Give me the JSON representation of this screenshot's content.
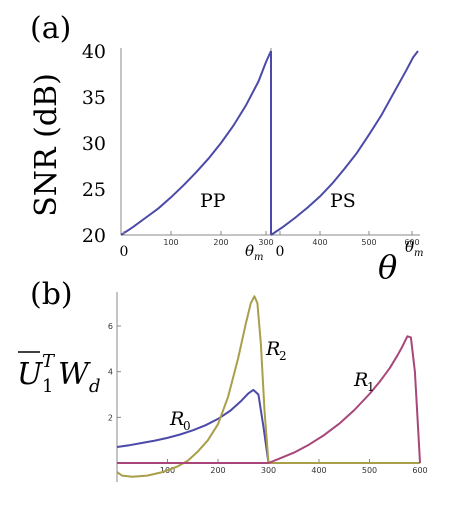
{
  "chart_data": [
    {
      "panel_label": "(a)",
      "type": "line",
      "ylabel": "SNR (dB)",
      "xlabel": "θ",
      "ylim": [
        20,
        40
      ],
      "y_ticks": [
        "20",
        "25",
        "30",
        "35",
        "40"
      ],
      "x_ticks": [
        "0",
        "100",
        "200",
        "300",
        "0",
        "100",
        "200",
        "300",
        "400",
        "500",
        "600"
      ],
      "theta_marker": "θ",
      "theta_marker_sub": "m",
      "color": "#4b4aa8",
      "series": [
        {
          "name": "PP",
          "x": [
            0,
            25,
            50,
            75,
            100,
            125,
            150,
            175,
            200,
            225,
            250,
            275,
            290,
            300
          ],
          "values": [
            20,
            20.9,
            21.9,
            22.9,
            24.1,
            25.4,
            26.8,
            28.3,
            30.0,
            31.9,
            34.1,
            36.7,
            38.8,
            40
          ]
        },
        {
          "name": "PS",
          "x": [
            300,
            325,
            350,
            375,
            400,
            425,
            450,
            475,
            500,
            525,
            550,
            575,
            590,
            600
          ],
          "values": [
            20,
            20.9,
            21.9,
            23.0,
            24.2,
            25.6,
            27.2,
            28.9,
            30.9,
            33.0,
            35.4,
            37.8,
            39.3,
            40
          ]
        }
      ]
    },
    {
      "panel_label": "(b)",
      "type": "line",
      "ylabel_main": "U",
      "ylabel_sub": "1",
      "ylabel_sup": "T",
      "ylabel_tail": "W",
      "ylabel_tail_sub": "d",
      "xlim": [
        0,
        600
      ],
      "ylim": [
        -1,
        8
      ],
      "x_ticks": [
        "100",
        "200",
        "300",
        "400",
        "500",
        "600"
      ],
      "y_ticks": [
        "2",
        "4",
        "6"
      ],
      "series": [
        {
          "name": "R0",
          "label_main": "R",
          "label_sub": "0",
          "color": "#4b4aa8",
          "x": [
            0,
            25,
            50,
            75,
            100,
            125,
            150,
            175,
            200,
            225,
            245,
            260,
            270,
            280,
            290,
            300,
            320,
            400,
            500,
            600
          ],
          "values": [
            0.7,
            0.78,
            0.88,
            0.98,
            1.1,
            1.25,
            1.43,
            1.65,
            1.93,
            2.3,
            2.7,
            3.05,
            3.2,
            3.0,
            1.6,
            0,
            0,
            0,
            0,
            0
          ]
        },
        {
          "name": "R2",
          "label_main": "R",
          "label_sub": "2",
          "color": "#a99e4a",
          "x": [
            0,
            10,
            30,
            60,
            90,
            120,
            140,
            160,
            180,
            200,
            220,
            240,
            255,
            265,
            272,
            278,
            285,
            292,
            300,
            320,
            400,
            500,
            600
          ],
          "values": [
            -0.4,
            -0.55,
            -0.6,
            -0.55,
            -0.4,
            -0.15,
            0.1,
            0.5,
            1.0,
            1.7,
            2.9,
            4.6,
            6.1,
            7.0,
            7.3,
            7.0,
            5.2,
            2.3,
            0,
            0,
            0,
            0,
            0
          ]
        },
        {
          "name": "R1",
          "label_main": "R",
          "label_sub": "1",
          "color": "#a8467a",
          "x": [
            0,
            100,
            200,
            300,
            320,
            350,
            380,
            410,
            440,
            470,
            500,
            520,
            540,
            555,
            565,
            575,
            582,
            590,
            597,
            600
          ],
          "values": [
            0,
            0,
            0,
            0,
            0.18,
            0.45,
            0.8,
            1.22,
            1.72,
            2.32,
            3.02,
            3.55,
            4.15,
            4.7,
            5.1,
            5.55,
            5.5,
            4.0,
            1.2,
            0
          ]
        }
      ]
    }
  ]
}
